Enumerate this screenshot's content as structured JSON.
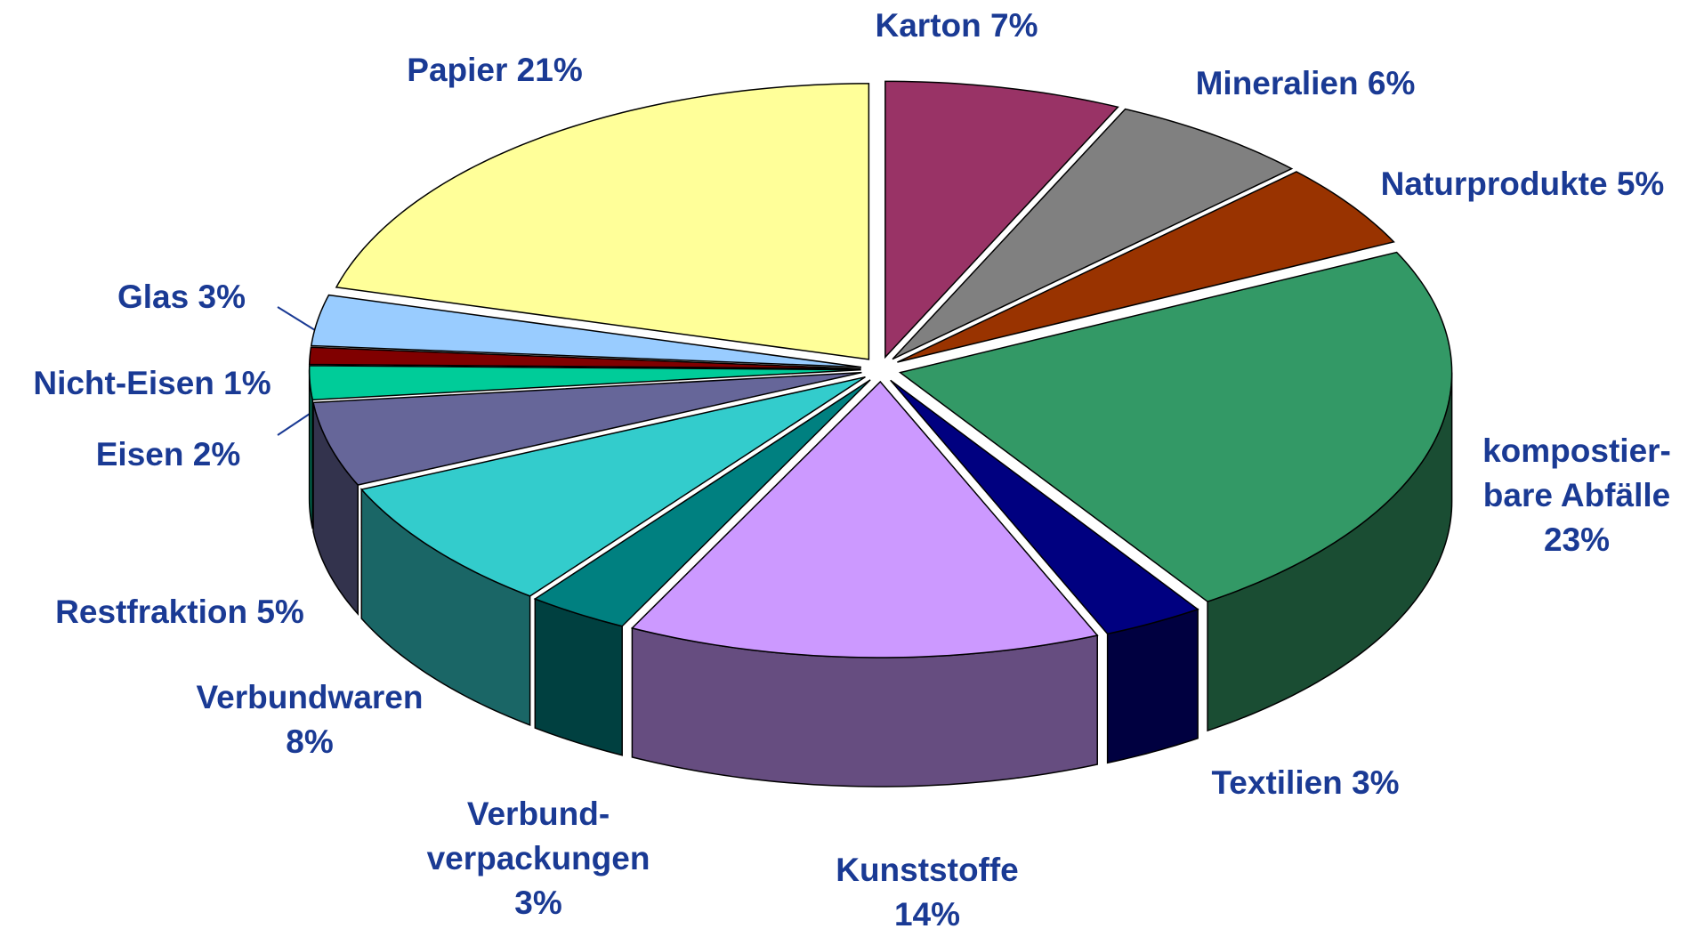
{
  "chart_data": {
    "type": "pie3d",
    "categories": [
      "Karton",
      "Mineralien",
      "Naturprodukte",
      "kompostier-bare Abfälle",
      "Textilien",
      "Kunststoffe",
      "Verbund-verpackungen",
      "Verbundwaren",
      "Restfraktion",
      "Eisen",
      "Nicht-Eisen",
      "Glas",
      "Papier"
    ],
    "values": [
      7,
      6,
      5,
      23,
      3,
      14,
      3,
      8,
      5,
      2,
      1,
      3,
      21
    ],
    "value_labels": [
      "7%",
      "6%",
      "5%",
      "23%",
      "3%",
      "14%",
      "3%",
      "8%",
      "5%",
      "2%",
      "1%",
      "3%",
      "21%"
    ],
    "colors": [
      "#993366",
      "#808080",
      "#993300",
      "#339966",
      "#000080",
      "#cc99ff",
      "#008080",
      "#33cccc",
      "#666699",
      "#00cc99",
      "#800000",
      "#99ccff",
      "#ffff99"
    ]
  }
}
